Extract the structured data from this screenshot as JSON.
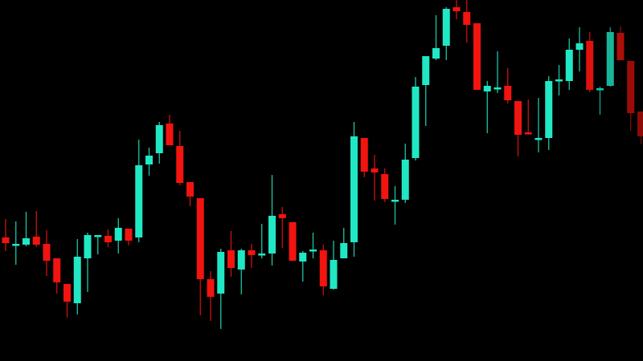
{
  "chart_data": {
    "type": "candlestick",
    "title": "",
    "xlabel": "",
    "ylabel": "",
    "grid": false,
    "axes_visible": false,
    "value_note_fields": [
      "open",
      "high",
      "low",
      "close"
    ],
    "colors": {
      "up": "#21e8c4",
      "down": "#f2140f",
      "background": "#000000"
    },
    "ylim": [
      0,
      450
    ],
    "candles": [
      [
        154,
        177,
        137,
        147
      ],
      [
        146,
        174,
        120,
        146
      ],
      [
        145,
        186,
        143,
        153
      ],
      [
        155,
        187,
        142,
        145
      ],
      [
        146,
        163,
        106,
        125
      ],
      [
        128,
        128,
        84,
        98
      ],
      [
        96,
        96,
        54,
        74
      ],
      [
        72,
        152,
        58,
        130
      ],
      [
        128,
        160,
        86,
        157
      ],
      [
        157,
        157,
        133,
        157
      ],
      [
        156,
        164,
        142,
        148
      ],
      [
        150,
        178,
        134,
        166
      ],
      [
        165,
        165,
        144,
        150
      ],
      [
        154,
        276,
        148,
        244
      ],
      [
        245,
        266,
        231,
        256
      ],
      [
        259,
        298,
        246,
        294
      ],
      [
        296,
        307,
        269,
        269
      ],
      [
        268,
        287,
        219,
        222
      ],
      [
        223,
        223,
        193,
        205
      ],
      [
        203,
        203,
        57,
        102
      ],
      [
        102,
        112,
        50,
        80
      ],
      [
        84,
        140,
        40,
        136
      ],
      [
        138,
        162,
        105,
        116
      ],
      [
        114,
        140,
        83,
        138
      ],
      [
        138,
        146,
        116,
        132
      ],
      [
        134,
        171,
        128,
        134
      ],
      [
        134,
        232,
        119,
        181
      ],
      [
        183,
        192,
        141,
        178
      ],
      [
        173,
        173,
        125,
        125
      ],
      [
        124,
        137,
        99,
        135
      ],
      [
        139,
        160,
        128,
        139
      ],
      [
        138,
        145,
        82,
        93
      ],
      [
        90,
        150,
        89,
        126
      ],
      [
        128,
        166,
        128,
        147
      ],
      [
        148,
        298,
        130,
        280
      ],
      [
        278,
        278,
        229,
        236
      ],
      [
        240,
        257,
        200,
        235
      ],
      [
        233,
        240,
        198,
        202
      ],
      [
        201,
        218,
        170,
        201
      ],
      [
        201,
        271,
        197,
        251
      ],
      [
        253,
        354,
        250,
        342
      ],
      [
        344,
        380,
        293,
        380
      ],
      [
        377,
        431,
        375,
        390
      ],
      [
        393,
        441,
        375,
        439
      ],
      [
        441,
        450,
        426,
        436
      ],
      [
        435,
        450,
        397,
        419
      ],
      [
        421,
        421,
        338,
        338
      ],
      [
        336,
        349,
        284,
        343
      ],
      [
        341,
        386,
        334,
        341
      ],
      [
        343,
        365,
        321,
        325
      ],
      [
        324,
        324,
        255,
        282
      ],
      [
        285,
        326,
        282,
        284
      ],
      [
        278,
        328,
        260,
        278
      ],
      [
        278,
        355,
        263,
        349
      ],
      [
        351,
        369,
        331,
        351
      ],
      [
        349,
        402,
        338,
        388
      ],
      [
        388,
        416,
        361,
        396
      ],
      [
        399,
        410,
        335,
        338
      ],
      [
        340,
        342,
        307,
        340
      ],
      [
        343,
        416,
        342,
        410
      ],
      [
        409,
        417,
        375,
        375
      ],
      [
        374,
        374,
        287,
        309
      ],
      [
        311,
        311,
        270,
        280
      ]
    ]
  }
}
